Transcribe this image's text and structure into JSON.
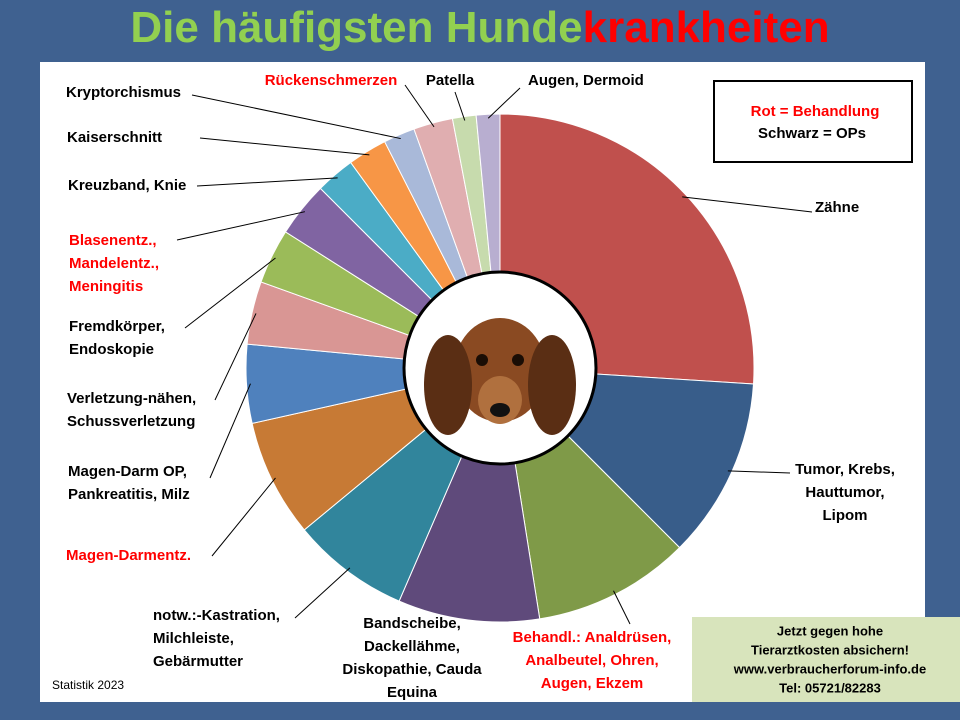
{
  "chart_data": {
    "type": "donut",
    "title": [
      "Die häufigsten Hunde",
      "krankheiten"
    ],
    "title_colors": [
      "#92d050",
      "#ff0000"
    ],
    "categories": [
      [
        "Zähne"
      ],
      [
        "Tumor, Krebs,",
        "Hauttumor,",
        "Lipom"
      ],
      [
        "Behandl.: Analdrüsen,",
        "Analbeutel, Ohren,",
        "Augen, Ekzem"
      ],
      [
        "Bandscheibe,",
        "Dackellähme,",
        "Diskopathie, Cauda",
        "Equina"
      ],
      [
        "notw.:-Kastration,",
        "Milchleiste,",
        "Gebärmutter"
      ],
      [
        "Magen-Darmentz."
      ],
      [
        "Magen-Darm OP,",
        "Pankreatitis, Milz"
      ],
      [
        "Verletzung-nähen,",
        "Schussverletzung"
      ],
      [
        "Fremdkörper,",
        "Endoskopie"
      ],
      [
        "Blasenentz.,",
        "Mandelentz.,",
        "Meningitis"
      ],
      [
        "Kreuzband, Knie"
      ],
      [
        "Kaiserschnitt"
      ],
      [
        "Kryptorchismus"
      ],
      [
        "Rückenschmerzen"
      ],
      [
        "Patella"
      ],
      [
        "Augen, Dermoid"
      ]
    ],
    "values": [
      26,
      11.5,
      10,
      9,
      7.5,
      7.5,
      5,
      4,
      3.5,
      3.5,
      2.5,
      2.5,
      2,
      2.5,
      1.5,
      1.5
    ],
    "colors": [
      "#c0504d",
      "#385d8a",
      "#7f9a48",
      "#5f4a7b",
      "#31859c",
      "#c77a35",
      "#4f81bd",
      "#d99694",
      "#9bbb59",
      "#8064a2",
      "#4bacc6",
      "#f79646",
      "#a9b9d9",
      "#e0aeb0",
      "#c7dbad",
      "#b8aed0"
    ],
    "label_colors": [
      "#000000",
      "#000000",
      "#ff0000",
      "#000000",
      "#000000",
      "#ff0000",
      "#000000",
      "#000000",
      "#000000",
      "#ff0000",
      "#000000",
      "#000000",
      "#000000",
      "#ff0000",
      "#000000",
      "#000000"
    ],
    "legend": [
      "Rot = Behandlung",
      "Schwarz = OPs"
    ],
    "legend_colors": [
      "#ff0000",
      "#000000"
    ],
    "footnote": "Statistik 2023",
    "promo": [
      "Jetzt gegen  hohe",
      "Tierarztkosten absichern!",
      "www.verbraucherforum-info.de",
      "Tel: 05721/82283"
    ]
  }
}
